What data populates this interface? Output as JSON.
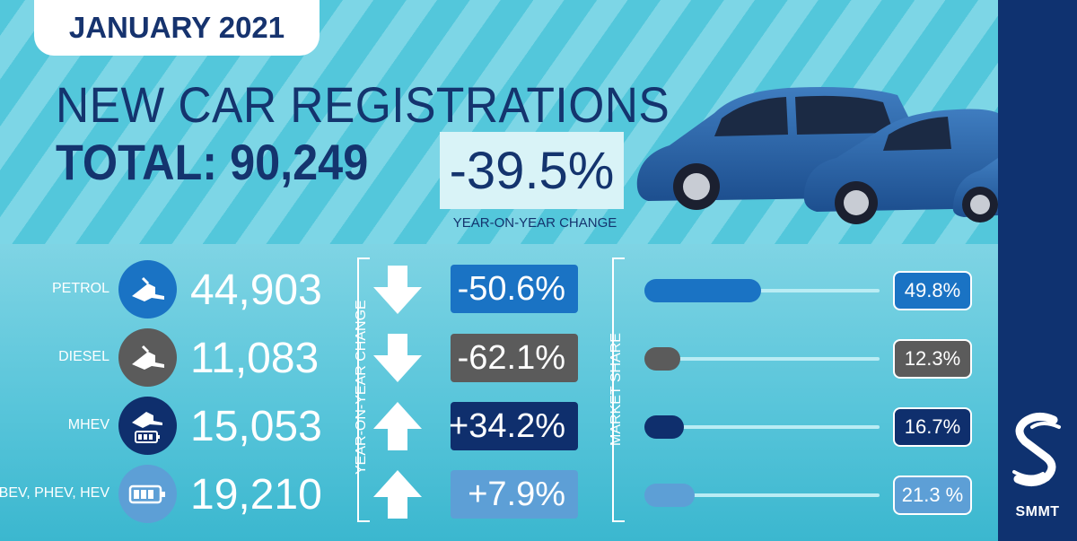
{
  "header": {
    "date": "JANUARY 2021",
    "title": "NEW CAR REGISTRATIONS",
    "total": "TOTAL: 90,249",
    "yoy_change": "-39.5%",
    "yoy_label": "YEAR-ON-YEAR CHANGE"
  },
  "axis_labels": {
    "yoy": "YEAR-ON-YEAR CHANGE",
    "share": "MARKET SHARE"
  },
  "brand": {
    "name": "SMMT"
  },
  "colors": {
    "petrol": "#1a73c4",
    "diesel": "#5b5b5b",
    "mhev": "#0f2f6d",
    "bev": "#5d9fd6",
    "navy": "#14346e"
  },
  "rows": [
    {
      "label": "PETROL",
      "count": "44,903",
      "change": "-50.6%",
      "direction": "down",
      "share_text": "49.8%",
      "share": 49.8,
      "icon": "fuel-pump-icon",
      "color": "#1a73c4"
    },
    {
      "label": "DIESEL",
      "count": "11,083",
      "change": "-62.1%",
      "direction": "down",
      "share_text": "12.3%",
      "share": 12.3,
      "icon": "fuel-pump-icon",
      "color": "#5b5b5b"
    },
    {
      "label": "MHEV",
      "count": "15,053",
      "change": "+34.2%",
      "direction": "up",
      "share_text": "16.7%",
      "share": 16.7,
      "icon": "fuel-pump-battery-icon",
      "color": "#0f2f6d"
    },
    {
      "label": "BEV, PHEV, HEV",
      "count": "19,210",
      "change": "+7.9%",
      "direction": "up",
      "share_text": "21.3 %",
      "share": 21.3,
      "icon": "battery-icon",
      "color": "#5d9fd6"
    }
  ],
  "chart_data": {
    "type": "bar",
    "categories": [
      "PETROL",
      "DIESEL",
      "MHEV",
      "BEV, PHEV, HEV"
    ],
    "series": [
      {
        "name": "",
        "values": [
          44903,
          11083,
          15053,
          19210
        ]
      },
      {
        "name": "YEAR-ON-YEAR CHANGE",
        "values": [
          -50.6,
          -62.1,
          34.2,
          7.9
        ]
      },
      {
        "name": "MARKET SHARE",
        "values": [
          49.8,
          12.3,
          16.7,
          21.3
        ]
      }
    ],
    "total": 90249,
    "total_yoy_change": -39.5
  }
}
